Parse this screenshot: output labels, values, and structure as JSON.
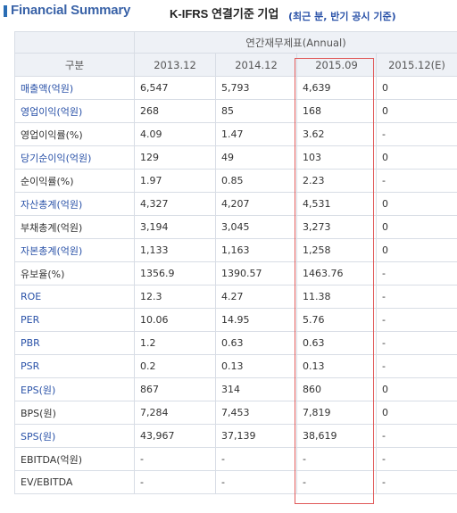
{
  "header": {
    "title": "Financial Summary",
    "basis": "K-IFRS 연결기준 기업",
    "note": "(최근 분, 반기 공시 기준)"
  },
  "table": {
    "group_label": "연간재무제표(Annual)",
    "corner_label": "구분",
    "columns": [
      "2013.12",
      "2014.12",
      "2015.09",
      "2015.12(E)"
    ],
    "rows": [
      {
        "label": "매출액(억원)",
        "link": true,
        "values": [
          "6,547",
          "5,793",
          "4,639",
          "0"
        ]
      },
      {
        "label": "영업이익(억원)",
        "link": true,
        "values": [
          "268",
          "85",
          "168",
          "0"
        ]
      },
      {
        "label": "영업이익률(%)",
        "link": false,
        "values": [
          "4.09",
          "1.47",
          "3.62",
          "-"
        ]
      },
      {
        "label": "당기순이익(억원)",
        "link": true,
        "values": [
          "129",
          "49",
          "103",
          "0"
        ]
      },
      {
        "label": "순이익률(%)",
        "link": false,
        "values": [
          "1.97",
          "0.85",
          "2.23",
          "-"
        ]
      },
      {
        "label": "자산총계(억원)",
        "link": true,
        "values": [
          "4,327",
          "4,207",
          "4,531",
          "0"
        ]
      },
      {
        "label": "부채총계(억원)",
        "link": false,
        "values": [
          "3,194",
          "3,045",
          "3,273",
          "0"
        ]
      },
      {
        "label": "자본총계(억원)",
        "link": true,
        "values": [
          "1,133",
          "1,163",
          "1,258",
          "0"
        ]
      },
      {
        "label": "유보율(%)",
        "link": false,
        "values": [
          "1356.9",
          "1390.57",
          "1463.76",
          "-"
        ]
      },
      {
        "label": "ROE",
        "link": true,
        "values": [
          "12.3",
          "4.27",
          "11.38",
          "-"
        ]
      },
      {
        "label": "PER",
        "link": true,
        "values": [
          "10.06",
          "14.95",
          "5.76",
          "-"
        ]
      },
      {
        "label": "PBR",
        "link": true,
        "values": [
          "1.2",
          "0.63",
          "0.63",
          "-"
        ]
      },
      {
        "label": "PSR",
        "link": true,
        "values": [
          "0.2",
          "0.13",
          "0.13",
          "-"
        ]
      },
      {
        "label": "EPS(원)",
        "link": true,
        "values": [
          "867",
          "314",
          "860",
          "0"
        ]
      },
      {
        "label": "BPS(원)",
        "link": false,
        "values": [
          "7,284",
          "7,453",
          "7,819",
          "0"
        ]
      },
      {
        "label": "SPS(원)",
        "link": true,
        "values": [
          "43,967",
          "37,139",
          "38,619",
          "-"
        ]
      },
      {
        "label": "EBITDA(억원)",
        "link": false,
        "values": [
          "-",
          "-",
          "-",
          "-"
        ]
      },
      {
        "label": "EV/EBITDA",
        "link": false,
        "values": [
          "-",
          "-",
          "-",
          "-"
        ]
      }
    ]
  },
  "colors": {
    "title": "#3a63a8",
    "note": "#2a52a8",
    "link_label": "#2a52a8",
    "header_bg": "#eef1f6",
    "highlight_border": "#e05a5a"
  }
}
